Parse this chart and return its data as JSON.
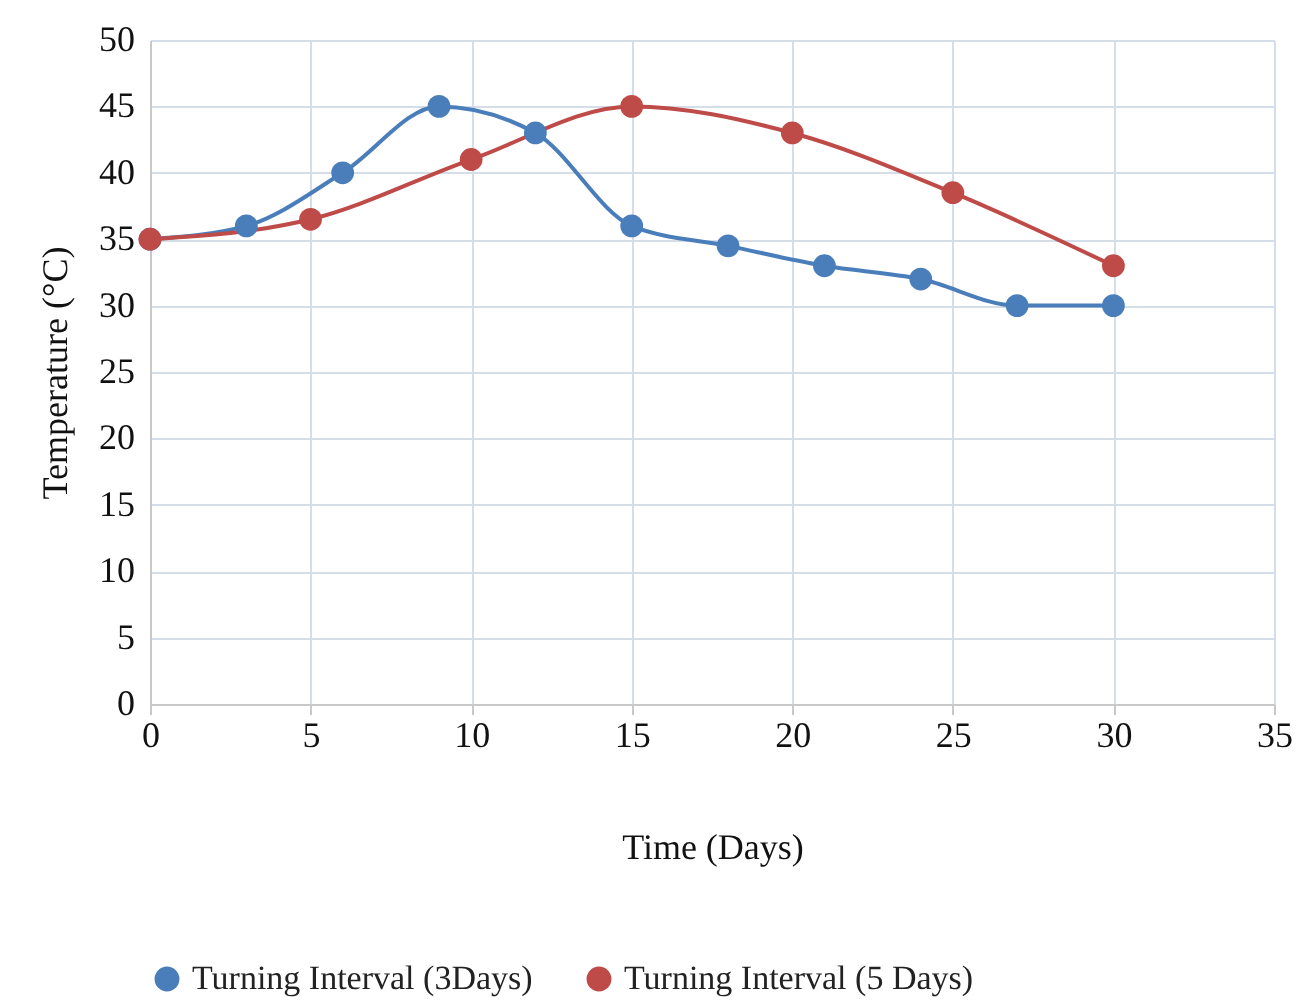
{
  "chart_data": {
    "type": "line",
    "xlabel": "Time (Days)",
    "ylabel": "Temperature (°C)",
    "series": [
      {
        "name": "Turning Interval (3Days)",
        "color": "#4a7ebb",
        "x": [
          0,
          3,
          6,
          9,
          12,
          15,
          18,
          21,
          24,
          27,
          30
        ],
        "values": [
          35,
          36,
          40,
          45,
          43,
          36,
          34.5,
          33,
          32,
          30,
          30
        ]
      },
      {
        "name": "Turning Interval (5 Days)",
        "color": "#be4b48",
        "x": [
          0,
          5,
          10,
          15,
          20,
          25,
          30
        ],
        "values": [
          35,
          36.5,
          41,
          45,
          43,
          38.5,
          33
        ]
      }
    ],
    "xlim": [
      0,
      35
    ],
    "xticks": [
      0,
      5,
      10,
      15,
      20,
      25,
      30,
      35
    ],
    "ylim": [
      0,
      50
    ],
    "yticks": [
      0,
      5,
      10,
      15,
      20,
      25,
      30,
      35,
      40,
      45,
      50
    ],
    "grid": true,
    "legend": "bottom",
    "marker": "circle",
    "line_style": "solid"
  }
}
